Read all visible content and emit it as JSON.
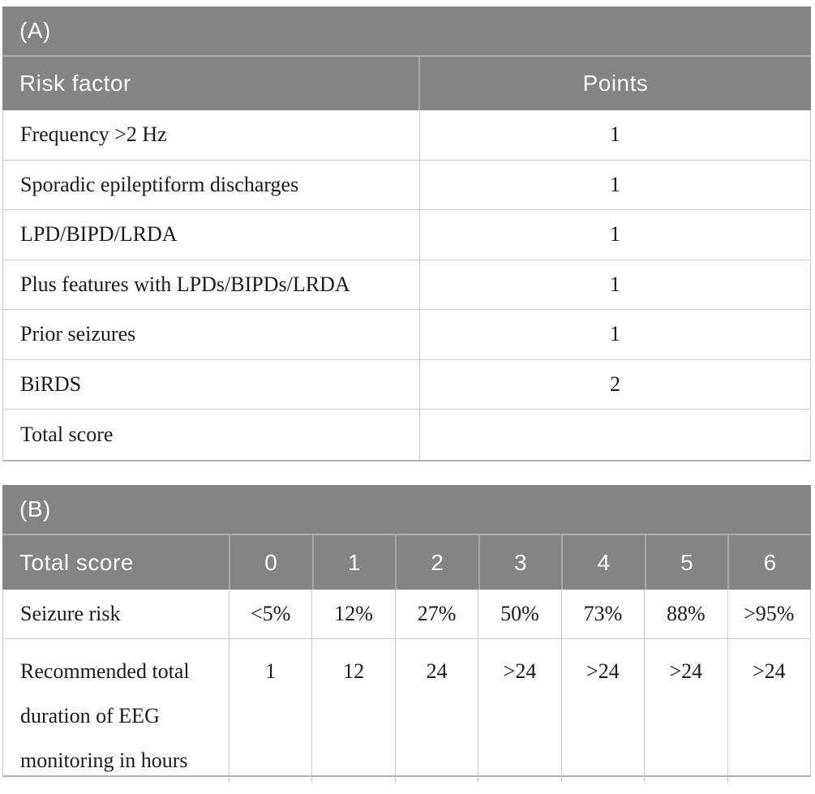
{
  "colors": {
    "header_bg": "#848484",
    "header_text": "#fbfbfb",
    "header_divider": "#a6a6a6",
    "row_border": "#cbcbcb",
    "outer_bottom_border": "#b0b0b0",
    "body_text": "#1b1b1b",
    "background": "#ffffff"
  },
  "table_a": {
    "label": "(A)",
    "columns": {
      "factor": "Risk factor",
      "points": "Points"
    },
    "rows": [
      {
        "factor": "Frequency >2 Hz",
        "points": "1"
      },
      {
        "factor": "Sporadic epileptiform discharges",
        "points": "1"
      },
      {
        "factor": "LPD/BIPD/LRDA",
        "points": "1"
      },
      {
        "factor": "Plus features with LPDs/BIPDs/LRDA",
        "points": "1"
      },
      {
        "factor": "Prior seizures",
        "points": "1"
      },
      {
        "factor": "BiRDS",
        "points": "2"
      },
      {
        "factor": "Total score",
        "points": ""
      }
    ]
  },
  "table_b": {
    "label": "(B)",
    "header": {
      "label": "Total score",
      "scores": [
        "0",
        "1",
        "2",
        "3",
        "4",
        "5",
        "6"
      ]
    },
    "rows": [
      {
        "label": "Seizure risk",
        "values": [
          "<5%",
          "12%",
          "27%",
          "50%",
          "73%",
          "88%",
          ">95%"
        ]
      },
      {
        "label": "Recommended total duration of EEG monitoring in hours",
        "values": [
          "1",
          "12",
          "24",
          ">24",
          ">24",
          ">24",
          ">24"
        ]
      }
    ]
  }
}
